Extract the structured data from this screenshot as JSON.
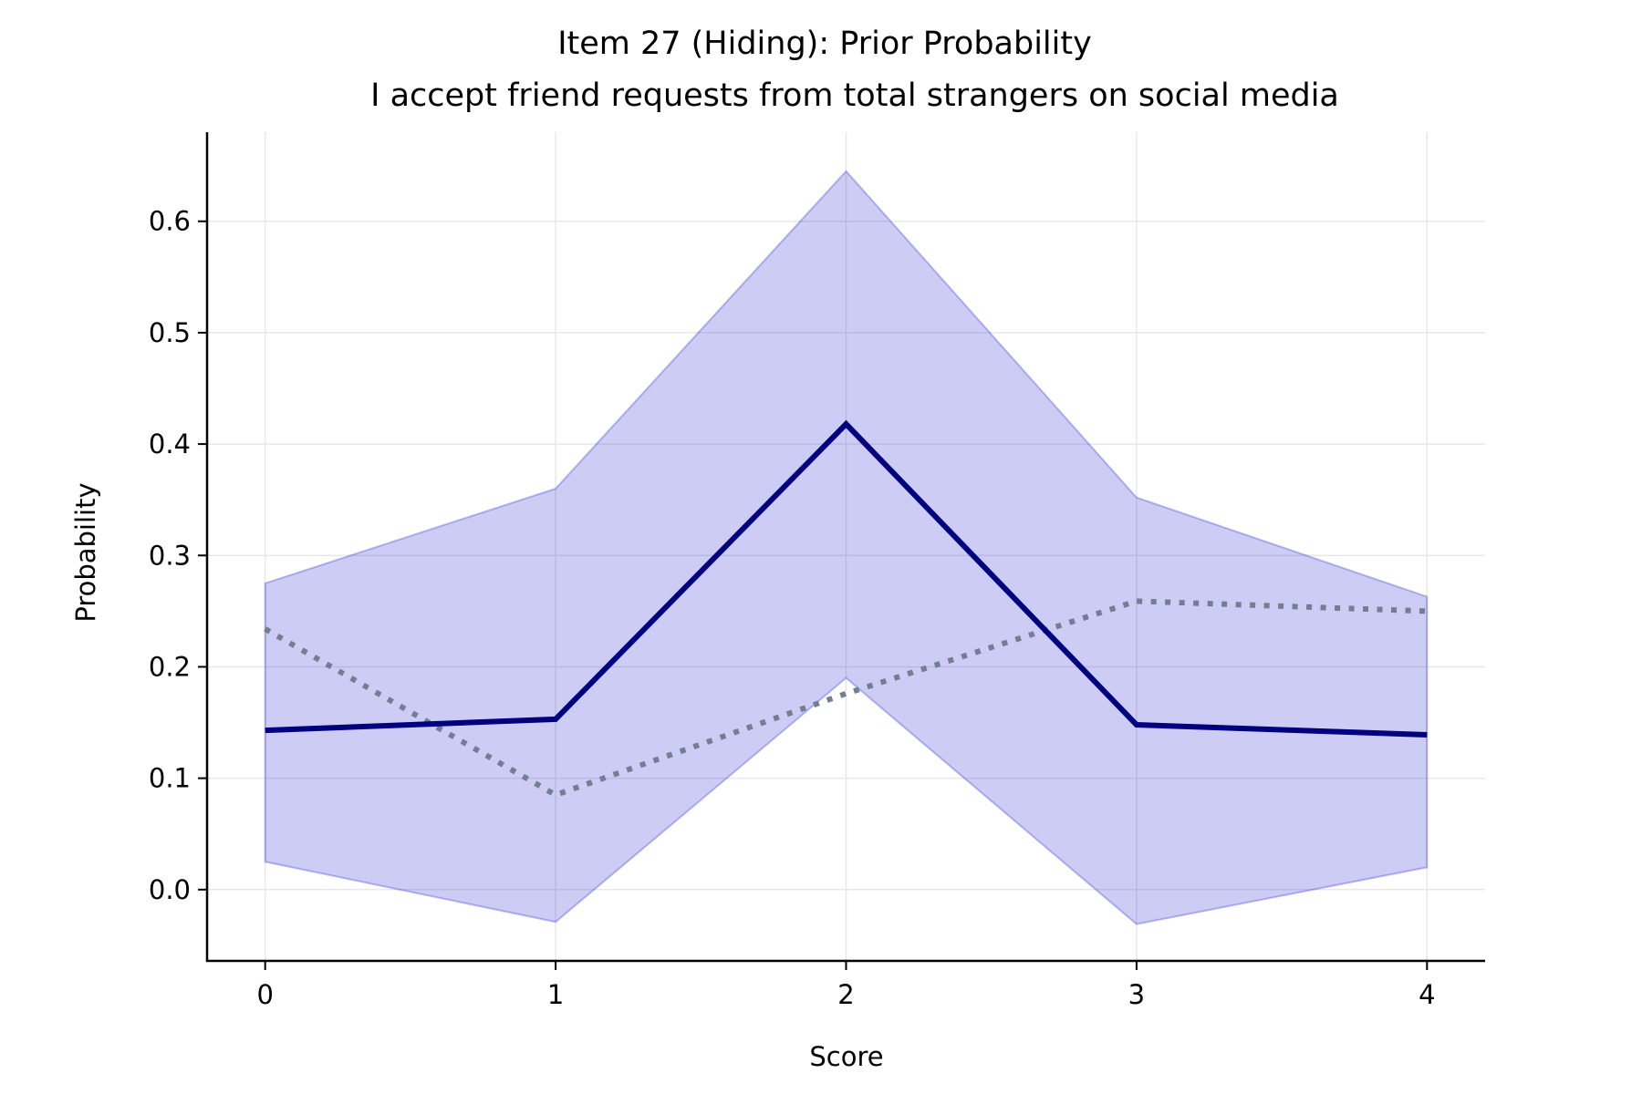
{
  "chart_data": {
    "type": "line",
    "title": "Item 27 (Hiding): Prior Probability",
    "subtitle": "I accept friend requests from total strangers on social media",
    "xlabel": "Score",
    "ylabel": "Probability",
    "x": [
      0,
      1,
      2,
      3,
      4
    ],
    "xlim": [
      -0.2,
      4.2
    ],
    "ylim": [
      -0.064,
      0.68
    ],
    "xticks": [
      "0",
      "1",
      "2",
      "3",
      "4"
    ],
    "yticks": [
      "0.0",
      "0.1",
      "0.2",
      "0.3",
      "0.4",
      "0.5",
      "0.6"
    ],
    "ytick_values": [
      0.0,
      0.1,
      0.2,
      0.3,
      0.4,
      0.5,
      0.6
    ],
    "grid": true,
    "series": [
      {
        "style": "solid",
        "color": "#000080",
        "values": [
          0.143,
          0.153,
          0.418,
          0.148,
          0.139
        ]
      },
      {
        "style": "dotted",
        "color": "#708090",
        "values": [
          0.234,
          0.085,
          0.176,
          0.259,
          0.25
        ]
      }
    ],
    "band": {
      "color": "#0000cd",
      "lower": [
        0.025,
        -0.029,
        0.19,
        -0.031,
        0.02
      ],
      "upper": [
        0.275,
        0.36,
        0.645,
        0.352,
        0.263
      ]
    }
  }
}
